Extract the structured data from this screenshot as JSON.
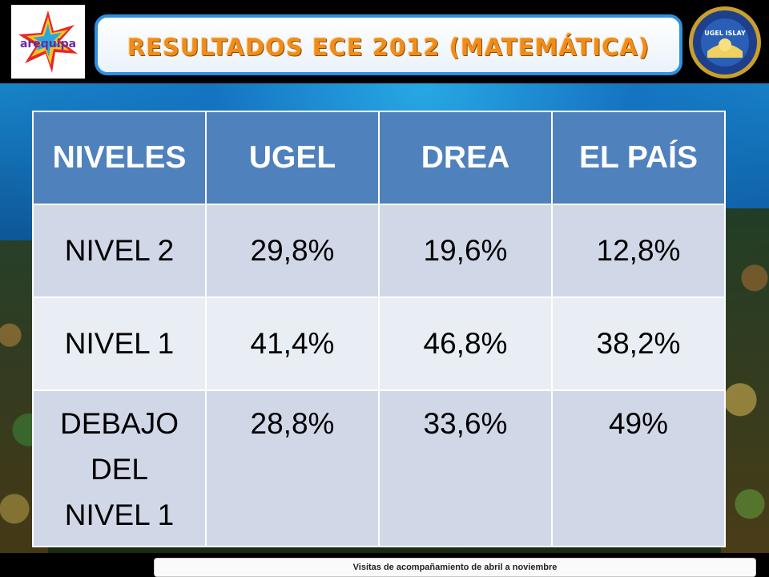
{
  "header": {
    "title": "RESULTADOS ECE 2012 (MATEMÁTICA)",
    "left_logo_text": "arequipa",
    "right_logo_text": "UGEL ISLAY"
  },
  "table": {
    "headers": [
      "NIVELES",
      "UGEL",
      "DREA",
      "EL PAÍS"
    ],
    "rows": [
      {
        "level": "NIVEL 2",
        "ugel": "29,8%",
        "drea": "19,6%",
        "pais": "12,8%"
      },
      {
        "level": "NIVEL 1",
        "ugel": "41,4%",
        "drea": "46,8%",
        "pais": "38,2%"
      },
      {
        "level_lines": [
          "DEBAJO",
          "DEL",
          "NIVEL 1"
        ],
        "ugel": "28,8%",
        "drea": "33,6%",
        "pais": "49%"
      }
    ]
  },
  "footer": {
    "text": "Visitas de acompañamiento de abril a noviembre"
  },
  "colors": {
    "header_cell": "#4f81bd",
    "row_a": "#d0d8e8",
    "row_b": "#e9edf4",
    "title": "#f08c1a",
    "title_border": "#2f8fe0"
  }
}
